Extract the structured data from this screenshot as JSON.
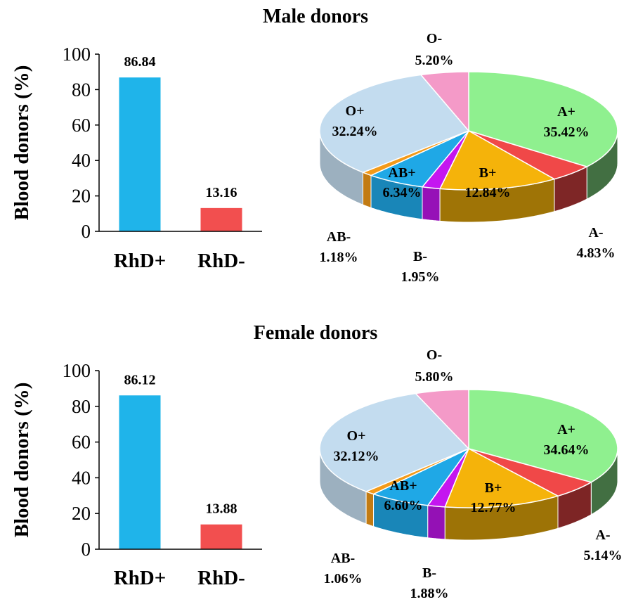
{
  "chart_data": [
    {
      "type": "bar",
      "title": "Male donors",
      "ylabel": "Blood donors (%)",
      "ylim": [
        0,
        100
      ],
      "yticks": [
        0,
        20,
        40,
        60,
        80,
        100
      ],
      "categories": [
        "RhD+",
        "RhD-"
      ],
      "values": [
        86.84,
        13.16
      ],
      "value_labels": [
        "86.84",
        "13.16"
      ],
      "colors": [
        "#1fb4ea",
        "#f24f4f"
      ]
    },
    {
      "type": "pie",
      "style": "3d",
      "title": "Male donors",
      "slices": [
        {
          "label": "A+",
          "value": 35.42,
          "text": "35.42%",
          "color": "#8ff08f"
        },
        {
          "label": "A-",
          "value": 4.83,
          "text": "4.83%",
          "color": "#f04848"
        },
        {
          "label": "B+",
          "value": 12.84,
          "text": "12.84%",
          "color": "#f5b30a"
        },
        {
          "label": "B-",
          "value": 1.95,
          "text": "1.95%",
          "color": "#c416f0"
        },
        {
          "label": "AB+",
          "value": 6.34,
          "text": "6.34%",
          "color": "#1fa8e6"
        },
        {
          "label": "AB-",
          "value": 1.18,
          "text": "1.18%",
          "color": "#f39a18"
        },
        {
          "label": "O+",
          "value": 32.24,
          "text": "32.24%",
          "color": "#c3dcef"
        },
        {
          "label": "O-",
          "value": 5.2,
          "text": "5.20%",
          "color": "#f49ac8"
        }
      ]
    },
    {
      "type": "bar",
      "title": "Female donors",
      "ylabel": "Blood donors (%)",
      "ylim": [
        0,
        100
      ],
      "yticks": [
        0,
        20,
        40,
        60,
        80,
        100
      ],
      "categories": [
        "RhD+",
        "RhD-"
      ],
      "values": [
        86.12,
        13.88
      ],
      "value_labels": [
        "86.12",
        "13.88"
      ],
      "colors": [
        "#1fb4ea",
        "#f24f4f"
      ]
    },
    {
      "type": "pie",
      "style": "3d",
      "title": "Female donors",
      "slices": [
        {
          "label": "A+",
          "value": 34.64,
          "text": "34.64%",
          "color": "#8ff08f"
        },
        {
          "label": "A-",
          "value": 5.14,
          "text": "5.14%",
          "color": "#f04848"
        },
        {
          "label": "B+",
          "value": 12.77,
          "text": "12.77%",
          "color": "#f5b30a"
        },
        {
          "label": "B-",
          "value": 1.88,
          "text": "1.88%",
          "color": "#c416f0"
        },
        {
          "label": "AB+",
          "value": 6.6,
          "text": "6.60%",
          "color": "#1fa8e6"
        },
        {
          "label": "AB-",
          "value": 1.06,
          "text": "1.06%",
          "color": "#f39a18"
        },
        {
          "label": "O+",
          "value": 32.12,
          "text": "32.12%",
          "color": "#c3dcef"
        },
        {
          "label": "O-",
          "value": 5.8,
          "text": "5.80%",
          "color": "#f49ac8"
        }
      ]
    }
  ]
}
